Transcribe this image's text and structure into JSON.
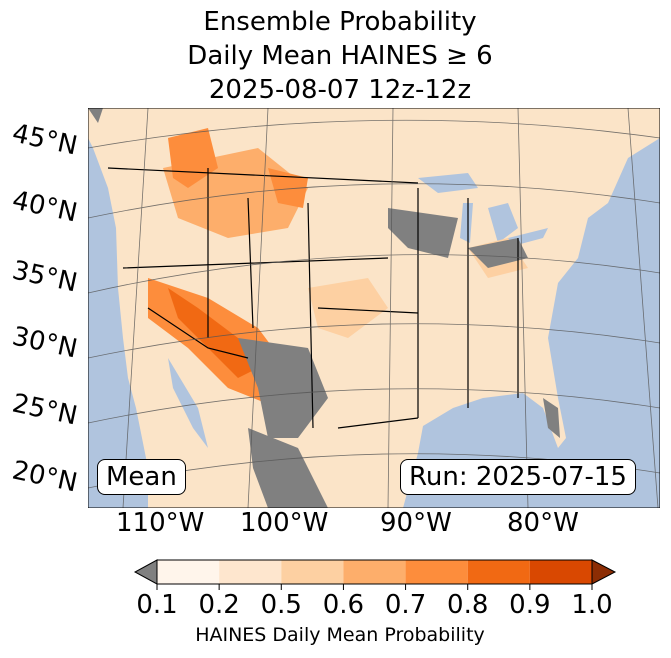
{
  "title": {
    "line1": "Ensemble Probability",
    "line2": "Daily Mean HAINES ≥ 6",
    "line3": "2025-08-07 12z-12z"
  },
  "map": {
    "lat_labels": [
      "45°N",
      "40°N",
      "35°N",
      "30°N",
      "25°N",
      "20°N"
    ],
    "lon_labels": [
      "110°W",
      "100°W",
      "90°W",
      "80°W"
    ],
    "stat_label": "Mean",
    "run_label": "Run: 2025-07-15",
    "colors": {
      "ocean": "#b0c4de",
      "land": "#fff0e0",
      "missing": "#808080"
    }
  },
  "colorbar": {
    "label": "HAINES Daily Mean Probability",
    "ticks": [
      "0.1",
      "0.2",
      "0.5",
      "0.6",
      "0.7",
      "0.8",
      "0.9",
      "1.0"
    ],
    "under_color": "#808080",
    "over_color": "#8c2d04",
    "colors": [
      "#fff5eb",
      "#fee6ce",
      "#fdd0a2",
      "#fdae6b",
      "#fd8d3c",
      "#f16913",
      "#d94801"
    ]
  }
}
